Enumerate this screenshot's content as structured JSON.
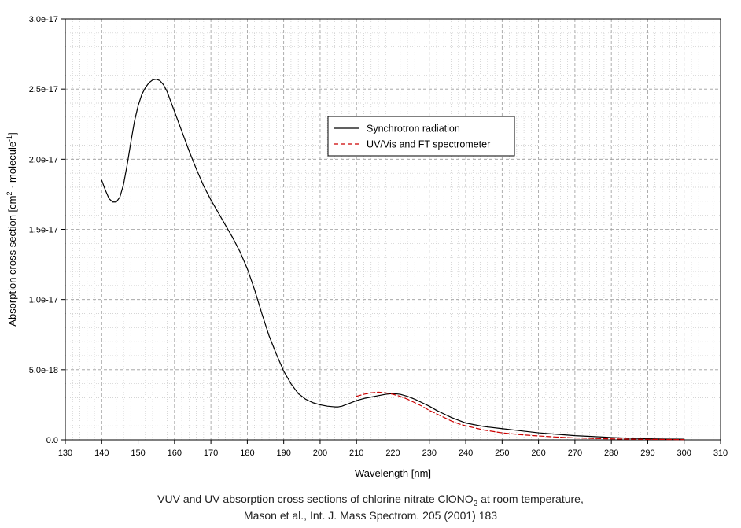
{
  "chart_data": {
    "type": "line",
    "xlabel": "Wavelength [nm]",
    "ylabel": {
      "prefix": "Absorption cross section [cm",
      "sup1": "2",
      "middle": " · molecule",
      "sup2": "-1",
      "suffix": "]"
    },
    "xlim": [
      130,
      310
    ],
    "ylim": [
      0,
      3e-17
    ],
    "x_ticks": [
      130,
      140,
      150,
      160,
      170,
      180,
      190,
      200,
      210,
      220,
      230,
      240,
      250,
      260,
      270,
      280,
      290,
      300,
      310
    ],
    "y_ticks": [
      {
        "value": 0,
        "label": "0.0"
      },
      {
        "value": 5e-18,
        "label": "5.0e-18"
      },
      {
        "value": 1e-17,
        "label": "1.0e-17"
      },
      {
        "value": 1.5e-17,
        "label": "1.5e-17"
      },
      {
        "value": 2e-17,
        "label": "2.0e-17"
      },
      {
        "value": 2.5e-17,
        "label": "2.5e-17"
      },
      {
        "value": 3e-17,
        "label": "3.0e-17"
      }
    ],
    "grid": true,
    "legend_position": "top-center",
    "series": [
      {
        "name": "Synchrotron radiation",
        "color": "#000000",
        "style": "solid",
        "x": [
          140,
          141,
          142,
          143,
          144,
          145,
          146,
          147,
          148,
          149,
          150,
          151,
          152,
          153,
          154,
          155,
          156,
          157,
          158,
          160,
          162,
          164,
          166,
          168,
          170,
          172,
          174,
          176,
          178,
          180,
          182,
          184,
          186,
          188,
          190,
          192,
          194,
          196,
          198,
          200,
          202,
          204,
          205,
          206,
          208,
          210,
          212,
          214,
          216,
          218,
          220,
          222,
          224,
          226,
          228,
          230,
          232,
          234,
          236,
          238,
          240,
          245,
          250,
          255,
          260,
          265,
          270,
          275,
          280,
          285,
          290,
          295,
          300
        ],
        "values": [
          1.85e-17,
          1.78e-17,
          1.72e-17,
          1.695e-17,
          1.695e-17,
          1.73e-17,
          1.82e-17,
          1.96e-17,
          2.12e-17,
          2.27e-17,
          2.38e-17,
          2.46e-17,
          2.51e-17,
          2.545e-17,
          2.565e-17,
          2.57e-17,
          2.56e-17,
          2.53e-17,
          2.48e-17,
          2.34e-17,
          2.2e-17,
          2.06e-17,
          1.93e-17,
          1.81e-17,
          1.71e-17,
          1.62e-17,
          1.53e-17,
          1.44e-17,
          1.34e-17,
          1.22e-17,
          1.07e-17,
          9e-18,
          7.4e-18,
          6.1e-18,
          4.9e-18,
          4e-18,
          3.3e-18,
          2.9e-18,
          2.65e-18,
          2.5e-18,
          2.4e-18,
          2.35e-18,
          2.35e-18,
          2.4e-18,
          2.6e-18,
          2.8e-18,
          2.95e-18,
          3.05e-18,
          3.15e-18,
          3.25e-18,
          3.3e-18,
          3.25e-18,
          3.1e-18,
          2.9e-18,
          2.65e-18,
          2.4e-18,
          2.1e-18,
          1.85e-18,
          1.6e-18,
          1.4e-18,
          1.2e-18,
          9.5e-19,
          8e-19,
          6.5e-19,
          5e-19,
          4e-19,
          3e-19,
          2.4e-19,
          1.7e-19,
          1.2e-19,
          8e-20,
          6e-20,
          5e-20
        ]
      },
      {
        "name": "UV/Vis and FT spectrometer",
        "color": "#cc0000",
        "style": "dashed",
        "x": [
          210,
          212,
          214,
          216,
          218,
          220,
          222,
          224,
          226,
          228,
          230,
          232,
          234,
          236,
          238,
          240,
          245,
          250,
          255,
          260,
          265,
          270,
          275,
          280,
          285,
          290,
          295,
          300
        ],
        "values": [
          3.1e-18,
          3.25e-18,
          3.35e-18,
          3.4e-18,
          3.35e-18,
          3.25e-18,
          3.1e-18,
          2.9e-18,
          2.65e-18,
          2.4e-18,
          2.1e-18,
          1.85e-18,
          1.6e-18,
          1.35e-18,
          1.15e-18,
          1e-18,
          7e-19,
          5e-19,
          3.7e-19,
          2.8e-19,
          2e-19,
          1.4e-19,
          1e-19,
          7e-20,
          5e-20,
          4e-20,
          3e-20,
          2e-20
        ]
      }
    ]
  },
  "caption": {
    "line1_prefix": "VUV and UV absorption cross sections of chlorine nitrate ClONO",
    "line1_sub": "2",
    "line1_suffix": " at room temperature,",
    "line2": "Mason et al., Int. J. Mass Spectrom. 205 (2001) 183"
  }
}
